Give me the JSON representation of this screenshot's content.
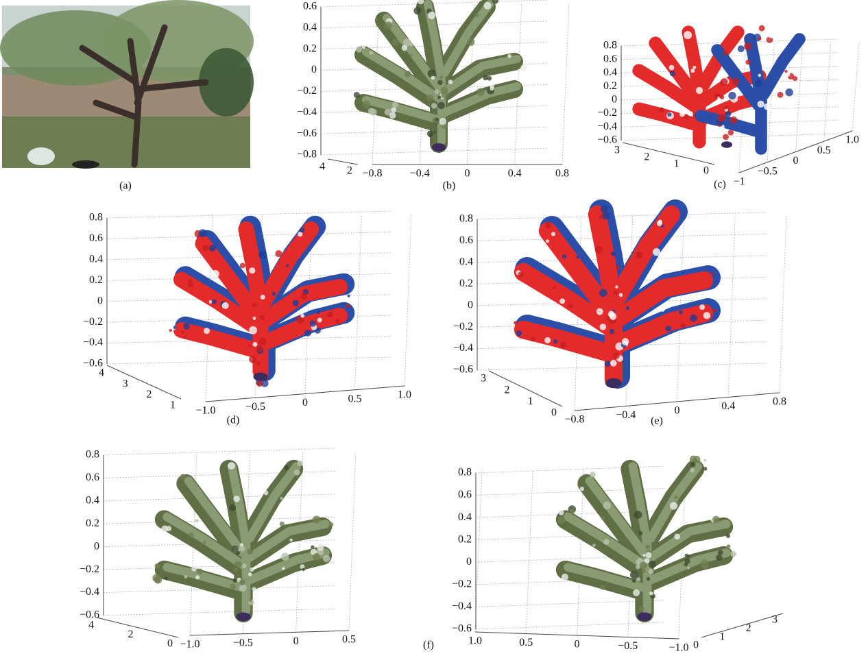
{
  "panels": [
    {
      "caption": "(a)"
    },
    {
      "caption": "(b)",
      "axes": [
        {
          "z_ticks": [
            "0.6",
            "0.4",
            "0.2",
            "0",
            "−0.2",
            "−0.4",
            "−0.6",
            "−0.8"
          ],
          "depth_ticks": [
            "4",
            "2"
          ],
          "x_ticks": [
            "−0.8",
            "−0.4",
            "0",
            "0.4",
            "0.8"
          ]
        }
      ]
    },
    {
      "caption": "(c)",
      "axes": [
        {
          "z_ticks": [
            "0.8",
            "0.6",
            "0.4",
            "0.2",
            "0",
            "−0.2",
            "−0.4",
            "−0.6"
          ],
          "depth_ticks": [
            "3",
            "2",
            "1",
            "0"
          ],
          "x_ticks": [
            "−1",
            "−0.5",
            "0",
            "0.5",
            "1.0"
          ]
        }
      ]
    },
    {
      "caption": "(d)",
      "axes": [
        {
          "z_ticks": [
            "0.8",
            "0.6",
            "0.4",
            "0.2",
            "0",
            "−0.2",
            "−0.4",
            "−0.6"
          ],
          "depth_ticks": [
            "4",
            "3",
            "2",
            "1"
          ],
          "x_ticks": [
            "−1.0",
            "−0.5",
            "0",
            "0.5",
            "1.0"
          ]
        }
      ]
    },
    {
      "caption": "(e)",
      "axes": [
        {
          "z_ticks": [
            "0.8",
            "0.6",
            "0.4",
            "0.2",
            "0",
            "−0.2",
            "−0.4",
            "−0.6"
          ],
          "depth_ticks": [
            "3",
            "2",
            "1",
            "0"
          ],
          "x_ticks": [
            "−0.8",
            "−0.4",
            "0",
            "0.4",
            "0.8"
          ]
        }
      ]
    },
    {
      "caption": "(f)",
      "axes": [
        {
          "z_ticks": [
            "0.8",
            "0.6",
            "0.4",
            "0.2",
            "0",
            "−0.2",
            "−0.4",
            "−0.6"
          ],
          "depth_ticks": [
            "4",
            "2",
            "0"
          ],
          "x_ticks": [
            "−1.0",
            "−0.5",
            "0",
            "0.5"
          ]
        },
        {
          "z_ticks": [
            "0.8",
            "0.6",
            "0.4",
            "0.2",
            "0",
            "−0.2",
            "−0.4",
            "−0.6"
          ],
          "depth_ticks": [
            "0",
            "1",
            "2",
            "3"
          ],
          "x_ticks": [
            "1.0",
            "0.5",
            "0",
            "−0.5",
            "−1.0"
          ]
        }
      ]
    }
  ]
}
